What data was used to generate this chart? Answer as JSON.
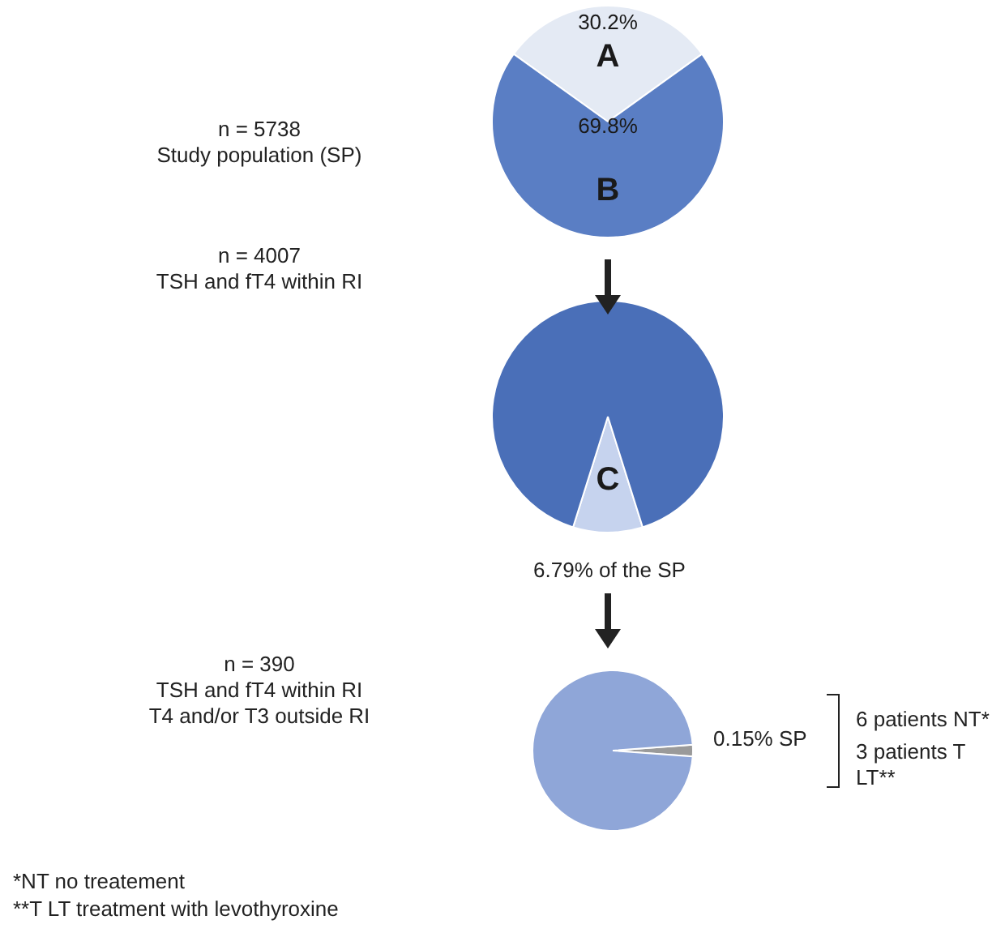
{
  "chart_data": [
    {
      "type": "pie",
      "categories": [
        "A",
        "B"
      ],
      "values": [
        30.2,
        69.8
      ],
      "colors": [
        "#e4eaf4",
        "#5a7ec4"
      ],
      "value_labels": [
        "30.2%",
        "69.8%"
      ],
      "annotations": [
        "n = 5738\nStudy population (SP)"
      ]
    },
    {
      "type": "pie",
      "categories": [
        "C",
        null
      ],
      "values": [
        9.7,
        90.3
      ],
      "colors": [
        "#c6d3ee",
        "#4a6fb8"
      ],
      "annotations": [
        "n = 4007\nTSH and fT4 within RI",
        "6.79% of the SP"
      ]
    },
    {
      "type": "pie",
      "categories": [
        null,
        null
      ],
      "values": [
        2.3,
        97.7
      ],
      "colors": [
        "#9a9a9a",
        "#8fa6d8"
      ],
      "annotations": [
        "n = 390\nTSH and fT4 within RI\nT4 and/or T3 outside RI",
        "0.15% SP",
        "6 patients NT*",
        "3 patients T LT**",
        "*NT   no treatement",
        "**T LT treatment with levothyroxine"
      ]
    }
  ]
}
